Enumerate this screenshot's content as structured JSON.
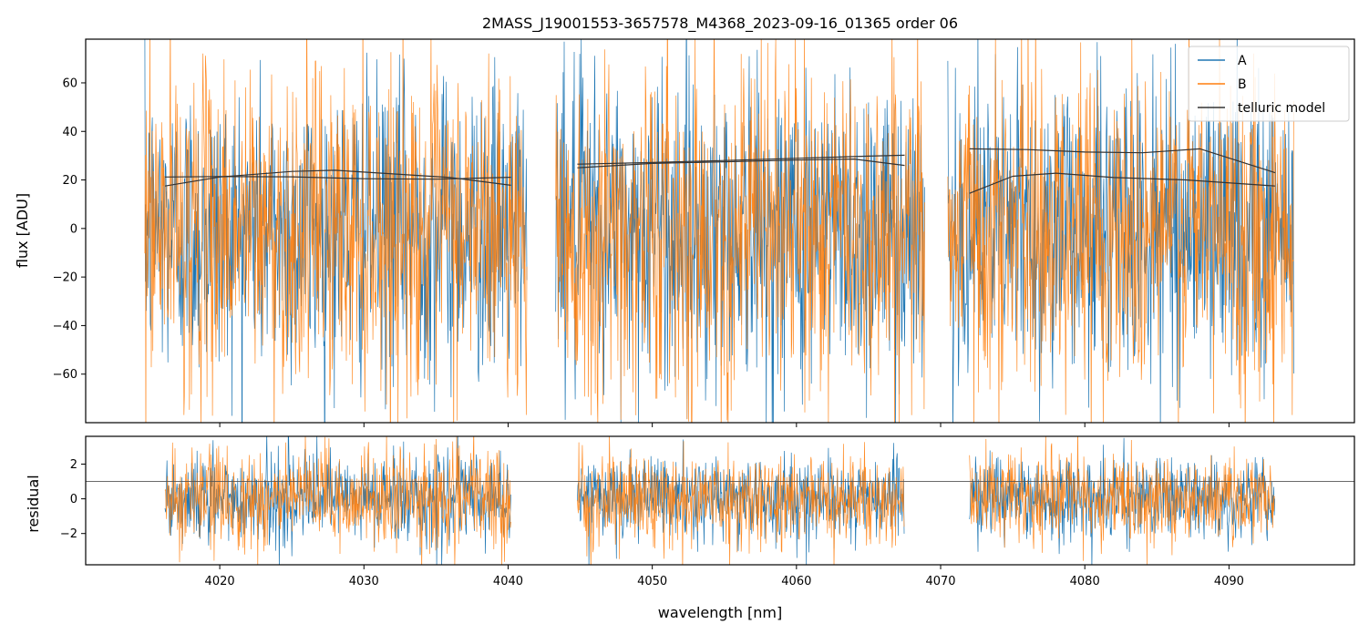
{
  "chart_data": [
    {
      "panel": "main",
      "type": "line",
      "title": "2MASS_J19001553-3657578_M4368_2023-09-16_01365  order 06",
      "xlabel": "",
      "ylabel": "flux [ADU]",
      "xlim": [
        4010.7,
        4098.7
      ],
      "ylim": [
        -80,
        78
      ],
      "yticks": [
        -60,
        -40,
        -20,
        0,
        20,
        40,
        60
      ],
      "xticks": [
        4020,
        4030,
        4040,
        4050,
        4060,
        4070,
        4080,
        4090
      ],
      "legend": {
        "placement": "top-right",
        "entries": [
          "A",
          "B",
          "telluric model"
        ]
      },
      "colors": {
        "A": "#1f77b4",
        "B": "#ff7f0e",
        "telluric model": "#000000"
      },
      "segments": [
        {
          "x_start": 4014.8,
          "x_end": 4041.3,
          "A": {
            "center": 0,
            "spread": 30
          },
          "B": {
            "center": 0,
            "spread": 33
          }
        },
        {
          "x_start": 4043.3,
          "x_end": 4068.9,
          "A": {
            "center": 0,
            "spread": 32
          },
          "B": {
            "center": 0,
            "spread": 34
          }
        },
        {
          "x_start": 4070.5,
          "x_end": 4094.5,
          "A": {
            "center": 0,
            "spread": 30
          },
          "B": {
            "center": 0,
            "spread": 33
          }
        }
      ],
      "series": [
        {
          "name": "telluric model",
          "curves": [
            {
              "x": [
                4016.2,
                4020,
                4025,
                4030,
                4035,
                4040.2
              ],
              "y": [
                21.2,
                21.4,
                21.3,
                20.5,
                20.3,
                21.1
              ]
            },
            {
              "x": [
                4016.2,
                4020,
                4025,
                4028,
                4032,
                4036,
                4040.2
              ],
              "y": [
                17.5,
                21.2,
                23.5,
                24.0,
                22.5,
                21.0,
                17.8
              ]
            },
            {
              "x": [
                4044.8,
                4050,
                4055,
                4060,
                4065,
                4067.5
              ],
              "y": [
                26.5,
                27.2,
                28.0,
                28.9,
                29.8,
                30.2
              ]
            },
            {
              "x": [
                4044.8,
                4050,
                4055,
                4060,
                4064,
                4067.5
              ],
              "y": [
                25.0,
                26.8,
                27.5,
                28.2,
                28.6,
                26.0
              ]
            },
            {
              "x": [
                4072.0,
                4076,
                4080,
                4084,
                4088,
                4093.2
              ],
              "y": [
                32.8,
                32.5,
                31.5,
                31.2,
                32.8,
                23.0
              ]
            },
            {
              "x": [
                4072.0,
                4075,
                4078,
                4082,
                4087,
                4093.2
              ],
              "y": [
                14.5,
                21.5,
                22.8,
                21.0,
                20.0,
                17.5
              ]
            }
          ]
        }
      ]
    },
    {
      "panel": "residual",
      "type": "line",
      "xlabel": "wavelength [nm]",
      "ylabel": "residual",
      "xlim": [
        4010.7,
        4098.7
      ],
      "ylim": [
        -3.8,
        3.6
      ],
      "yticks": [
        -2,
        0,
        2
      ],
      "xticks": [
        4020,
        4030,
        4040,
        4050,
        4060,
        4070,
        4080,
        4090
      ],
      "reference_line": 1,
      "segments": [
        {
          "x_start": 4016.2,
          "x_end": 4040.2,
          "A": {
            "center": 0,
            "spread": 1.3
          },
          "B": {
            "center": 0,
            "spread": 1.45
          }
        },
        {
          "x_start": 4044.8,
          "x_end": 4067.5,
          "A": {
            "center": 0,
            "spread": 1.15
          },
          "B": {
            "center": 0,
            "spread": 1.25
          }
        },
        {
          "x_start": 4072.0,
          "x_end": 4093.2,
          "A": {
            "center": 0,
            "spread": 1.15
          },
          "B": {
            "center": 0,
            "spread": 1.25
          }
        }
      ]
    }
  ]
}
